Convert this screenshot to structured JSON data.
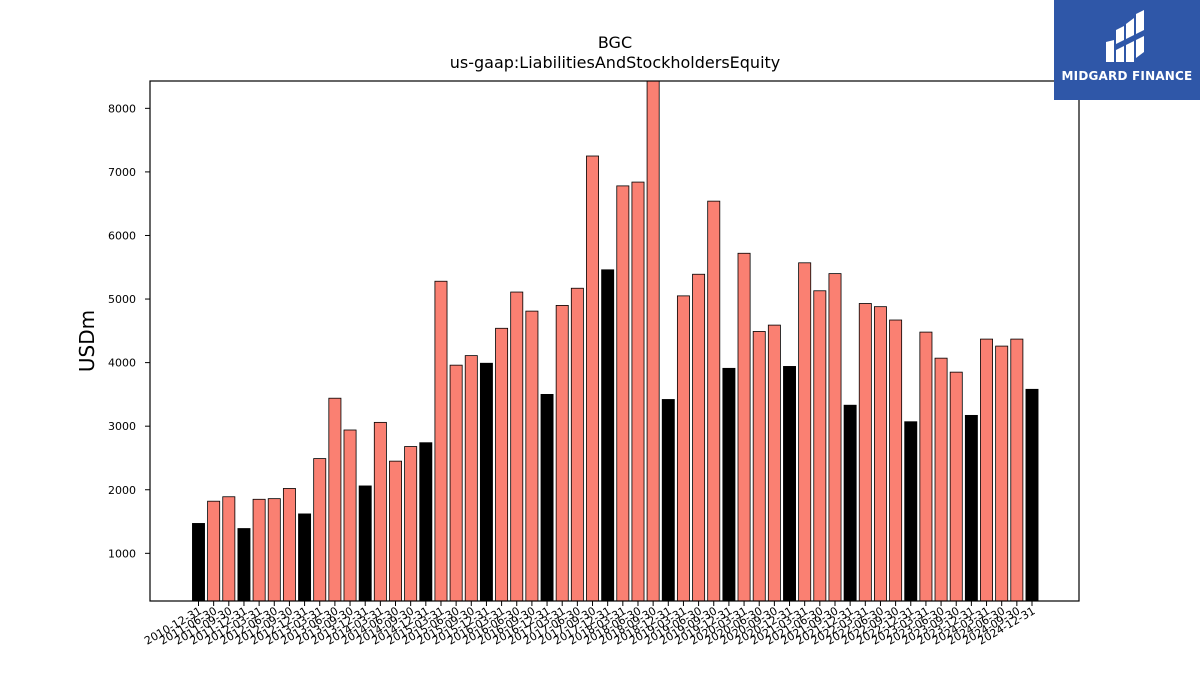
{
  "logo": {
    "text": "MIDGARD FINANCE",
    "background": "#2f57a8"
  },
  "chart_data": {
    "type": "bar",
    "title": "BGC",
    "subtitle": "us-gaap:LiabilitiesAndStockholdersEquity",
    "ylabel": "USDm",
    "xlabel": "",
    "ylim": [
      250,
      8430
    ],
    "yticks": [
      1000,
      2000,
      3000,
      4000,
      5000,
      6000,
      7000,
      8000
    ],
    "colors": {
      "annual": "#000000",
      "quarterly": "#fa8072"
    },
    "grid": false,
    "categories": [
      "2010-12-31",
      "2011-06-30",
      "2011-09-30",
      "2011-12-31",
      "2012-03-31",
      "2012-06-30",
      "2012-09-30",
      "2012-12-31",
      "2013-03-31",
      "2013-06-30",
      "2013-09-30",
      "2013-12-31",
      "2014-03-31",
      "2014-06-30",
      "2014-09-30",
      "2014-12-31",
      "2015-03-31",
      "2015-06-30",
      "2015-09-30",
      "2015-12-31",
      "2016-03-31",
      "2016-06-30",
      "2016-09-30",
      "2016-12-31",
      "2017-03-31",
      "2017-06-30",
      "2017-09-30",
      "2017-12-31",
      "2018-03-31",
      "2018-06-30",
      "2018-09-30",
      "2018-12-31",
      "2019-03-31",
      "2019-06-30",
      "2019-09-30",
      "2019-12-31",
      "2020-03-31",
      "2020-06-30",
      "2020-09-30",
      "2020-12-31",
      "2021-03-31",
      "2021-06-30",
      "2021-09-30",
      "2021-12-31",
      "2022-03-31",
      "2022-06-30",
      "2022-09-30",
      "2022-12-31",
      "2023-03-31",
      "2023-06-30",
      "2023-09-30",
      "2023-12-31",
      "2024-03-31",
      "2024-06-30",
      "2024-09-30",
      "2024-12-31"
    ],
    "values": [
      1470,
      1820,
      1890,
      1390,
      1850,
      1860,
      2020,
      1620,
      2490,
      3440,
      2940,
      2060,
      3060,
      2450,
      2680,
      2740,
      5280,
      3960,
      4110,
      3990,
      4540,
      5110,
      4810,
      3500,
      4900,
      5170,
      7250,
      5460,
      6780,
      6840,
      8430,
      3420,
      5050,
      5390,
      6540,
      3910,
      5720,
      4490,
      4590,
      3940,
      5570,
      5130,
      5400,
      3330,
      4930,
      4880,
      4670,
      3070,
      4480,
      4070,
      3850,
      3170,
      4370,
      4260,
      4370,
      3580
    ]
  }
}
